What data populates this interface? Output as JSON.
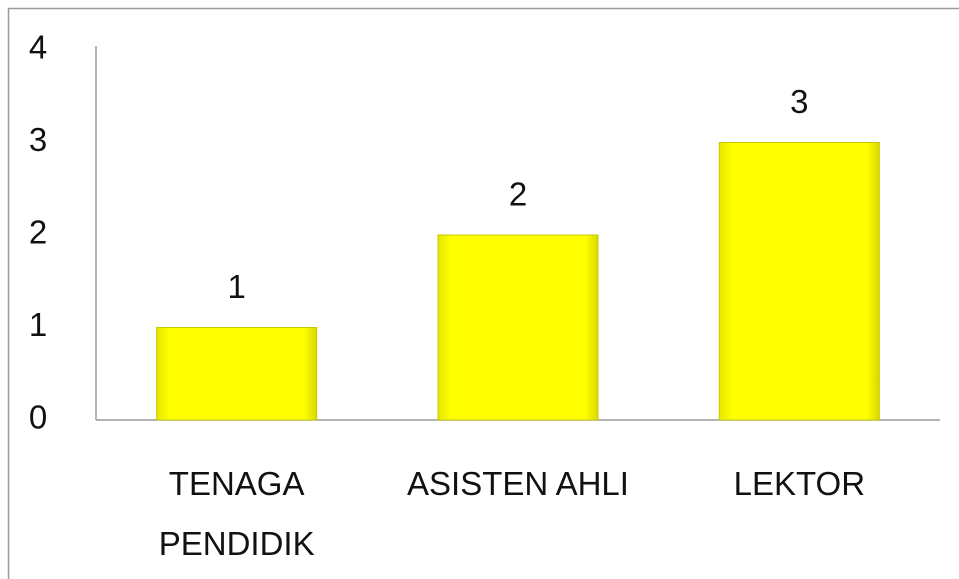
{
  "chart_data": {
    "type": "bar",
    "categories": [
      "TENAGA PENDIDIK",
      "ASISTEN AHLI",
      "LEKTOR"
    ],
    "values": [
      1,
      2,
      3
    ],
    "color": "#ffff00",
    "ylim": [
      0,
      4
    ],
    "yticks": [
      0,
      1,
      2,
      3,
      4
    ],
    "grid": false
  }
}
